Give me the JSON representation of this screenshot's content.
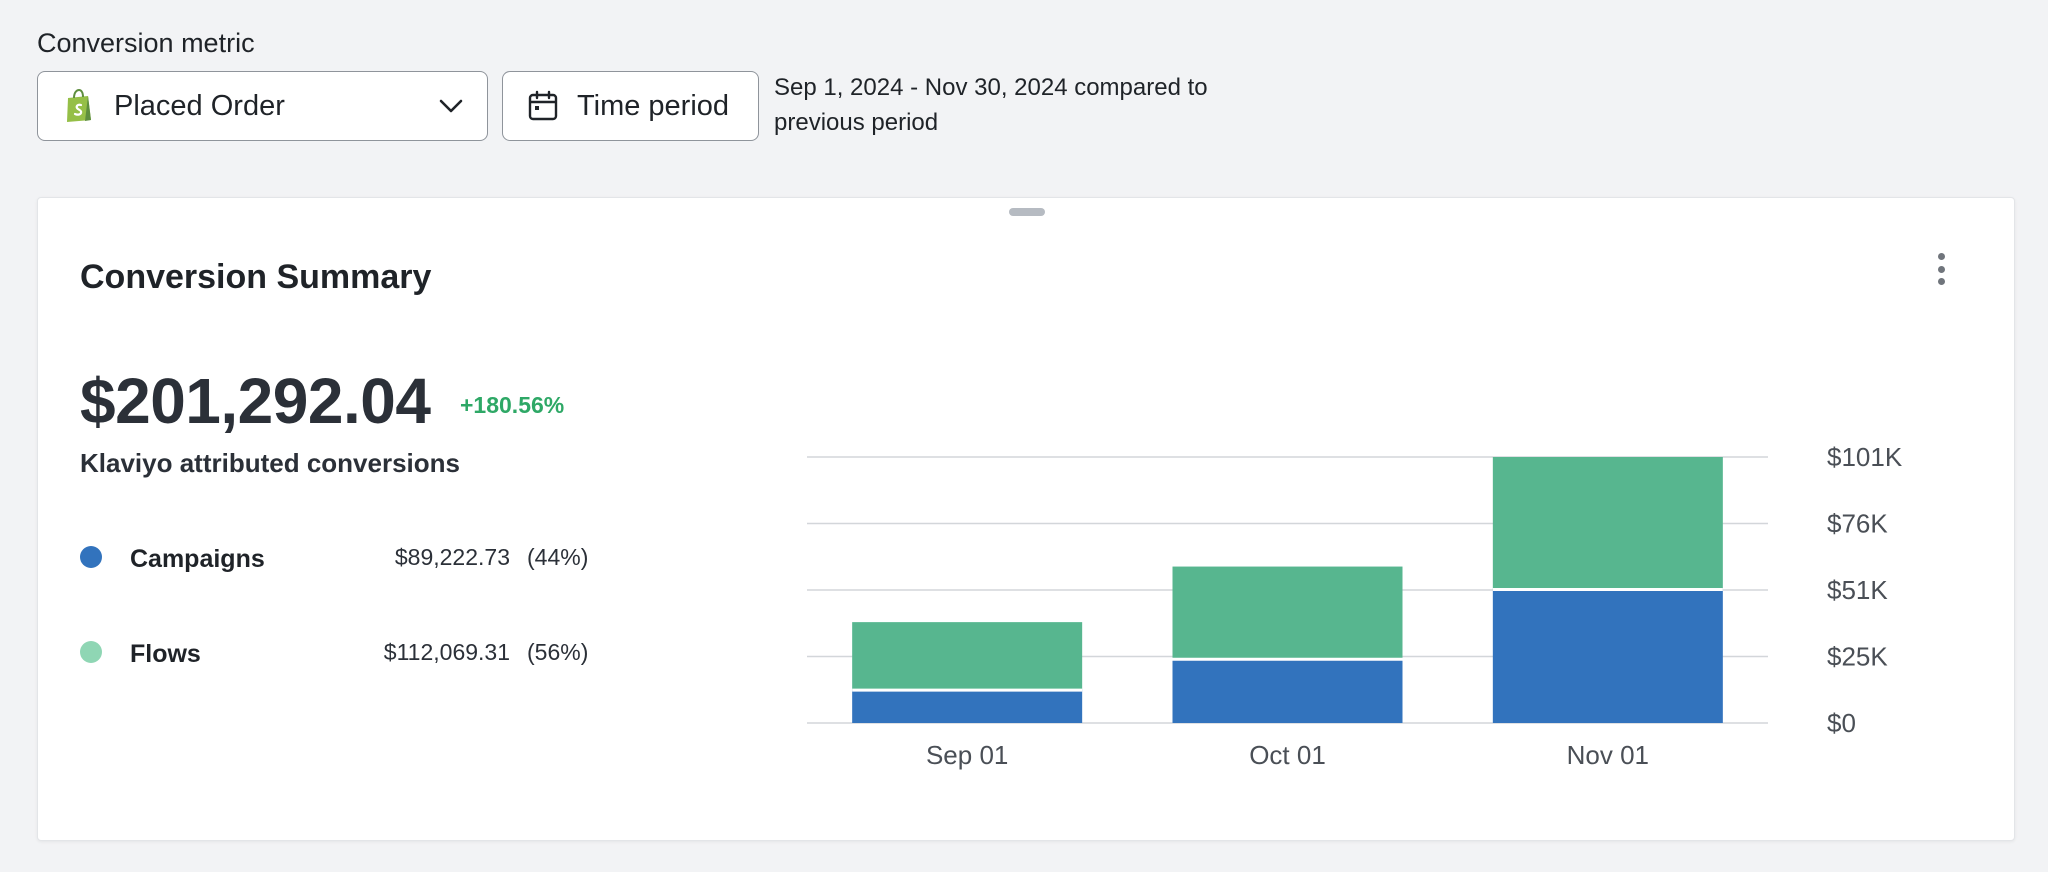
{
  "filters": {
    "metric_label": "Conversion metric",
    "metric_value": "Placed Order",
    "metric_icon": "shopify-bag-icon",
    "time_button_label": "Time period",
    "date_range_line1": "Sep 1, 2024 - Nov 30, 2024 compared to",
    "date_range_line2": "previous period"
  },
  "card": {
    "title": "Conversion Summary",
    "total_value": "$201,292.04",
    "delta": "+180.56%",
    "total_label": "Klaviyo attributed conversions",
    "legend": [
      {
        "name": "Campaigns",
        "value": "$89,222.73",
        "pct": "(44%)",
        "color": "#3273bd"
      },
      {
        "name": "Flows",
        "value": "$112,069.31",
        "pct": "(56%)",
        "color": "#8fd6b4"
      }
    ]
  },
  "chart_data": {
    "type": "bar",
    "stacked": true,
    "categories": [
      "Sep 01",
      "Oct 01",
      "Nov 01"
    ],
    "series": [
      {
        "name": "Campaigns",
        "color": "#3273bd",
        "values": [
          12500,
          24200,
          50700
        ]
      },
      {
        "name": "Flows",
        "color": "#57b68f",
        "values": [
          25800,
          35200,
          50300
        ]
      }
    ],
    "ylim": [
      0,
      101000
    ],
    "yticks": [
      0,
      25250,
      50500,
      75750,
      101000
    ],
    "ytick_labels": [
      "$0",
      "$25K",
      "$51K",
      "$76K",
      "$101K"
    ],
    "y_axis_position": "right",
    "grid": true
  }
}
